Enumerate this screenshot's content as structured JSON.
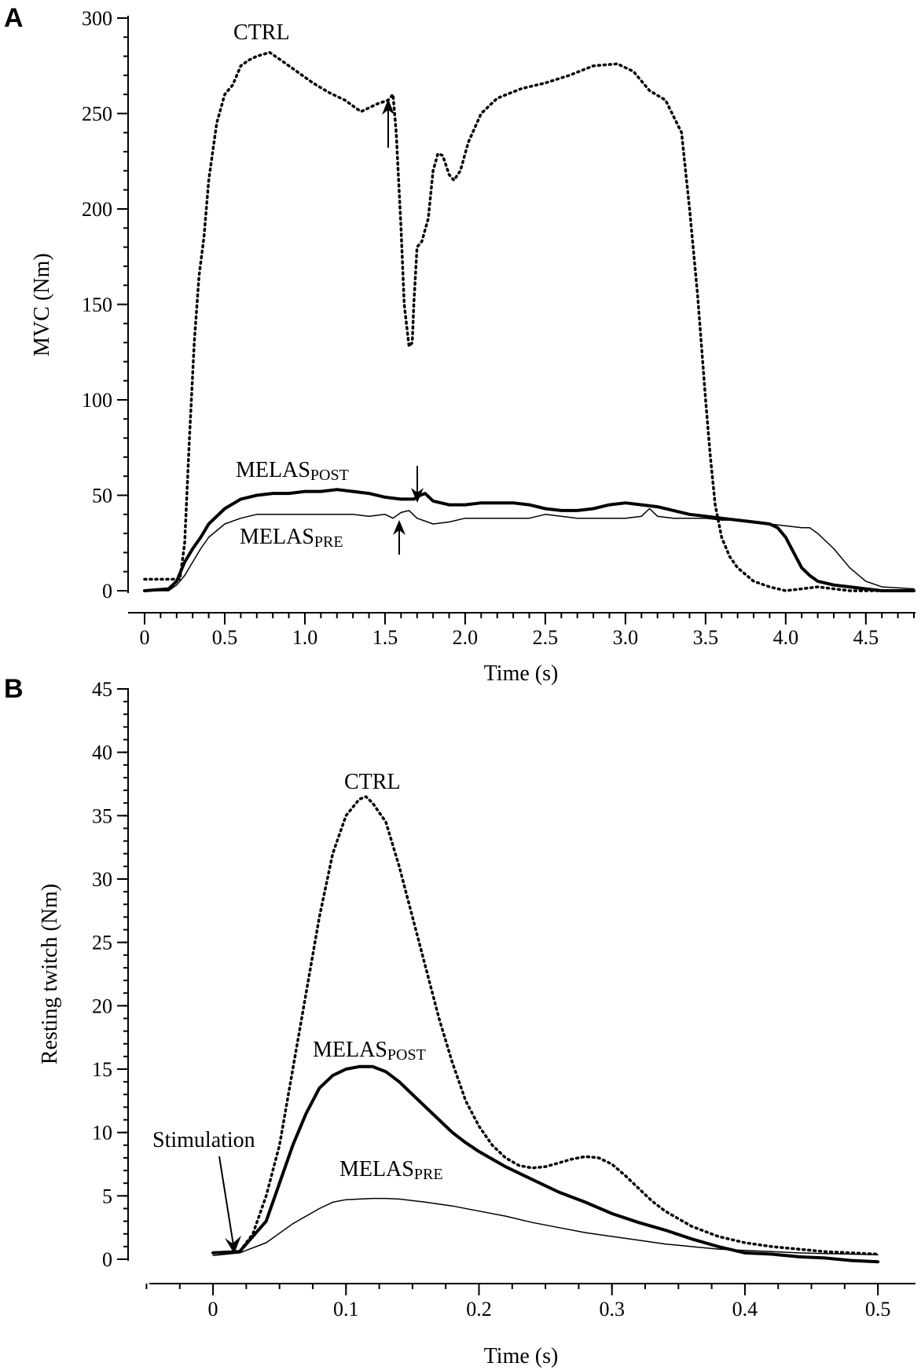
{
  "chart_data": [
    {
      "panel": "A",
      "type": "line",
      "xlabel": "Time (s)",
      "ylabel": "MVC (Nm)",
      "xlim": [
        0,
        4.8
      ],
      "ylim": [
        0,
        300
      ],
      "xticks": [
        "0",
        "0.5",
        "1.0",
        "1.5",
        "2.0",
        "2.5",
        "3.0",
        "3.5",
        "4.0",
        "4.5"
      ],
      "xtick_values": [
        0,
        0.5,
        1.0,
        1.5,
        2.0,
        2.5,
        3.0,
        3.5,
        4.0,
        4.5
      ],
      "yticks": [
        "0",
        "50",
        "100",
        "150",
        "200",
        "250",
        "300"
      ],
      "ytick_values": [
        0,
        50,
        100,
        150,
        200,
        250,
        300
      ],
      "series": [
        {
          "name": "CTRL",
          "style": "dotted",
          "x": [
            0,
            0.22,
            0.25,
            0.28,
            0.31,
            0.34,
            0.37,
            0.4,
            0.45,
            0.5,
            0.55,
            0.6,
            0.65,
            0.7,
            0.78,
            0.85,
            0.95,
            1.05,
            1.15,
            1.25,
            1.35,
            1.45,
            1.52,
            1.55,
            1.57,
            1.6,
            1.62,
            1.65,
            1.67,
            1.68,
            1.7,
            1.73,
            1.77,
            1.8,
            1.83,
            1.86,
            1.9,
            1.93,
            1.97,
            2.02,
            2.1,
            2.2,
            2.35,
            2.5,
            2.65,
            2.8,
            2.95,
            3.05,
            3.15,
            3.25,
            3.35,
            3.4,
            3.45,
            3.5,
            3.53,
            3.56,
            3.6,
            3.65,
            3.7,
            3.8,
            3.9,
            4.0,
            4.1,
            4.2,
            4.3,
            4.4,
            4.5,
            4.6,
            4.8
          ],
          "y": [
            6,
            6,
            25,
            80,
            130,
            165,
            185,
            215,
            245,
            260,
            265,
            275,
            278,
            280,
            282,
            278,
            272,
            266,
            261,
            257,
            251,
            255,
            257,
            260,
            240,
            190,
            150,
            128,
            130,
            150,
            180,
            183,
            195,
            220,
            229,
            228,
            218,
            215,
            220,
            235,
            250,
            258,
            263,
            266,
            270,
            275,
            276,
            272,
            262,
            257,
            240,
            200,
            155,
            100,
            70,
            45,
            28,
            18,
            12,
            5,
            2,
            0,
            1,
            2,
            1,
            0,
            0,
            0,
            0
          ]
        },
        {
          "name": "MELAS_POST",
          "style": "thick",
          "x": [
            0,
            0.15,
            0.2,
            0.25,
            0.3,
            0.35,
            0.4,
            0.5,
            0.6,
            0.7,
            0.8,
            0.9,
            1.0,
            1.1,
            1.2,
            1.3,
            1.4,
            1.5,
            1.6,
            1.68,
            1.72,
            1.75,
            1.8,
            1.9,
            2.0,
            2.1,
            2.2,
            2.3,
            2.4,
            2.5,
            2.6,
            2.7,
            2.8,
            2.9,
            3.0,
            3.1,
            3.2,
            3.3,
            3.4,
            3.5,
            3.6,
            3.7,
            3.8,
            3.9,
            3.95,
            4.0,
            4.05,
            4.1,
            4.15,
            4.2,
            4.3,
            4.4,
            4.5,
            4.6,
            4.8
          ],
          "y": [
            0,
            1,
            5,
            15,
            22,
            28,
            35,
            43,
            48,
            50,
            51,
            51,
            52,
            52,
            53,
            52,
            51,
            49,
            48,
            48,
            50,
            51,
            47,
            45,
            45,
            46,
            46,
            46,
            45,
            43,
            42,
            42,
            43,
            45,
            46,
            45,
            44,
            42,
            40,
            39,
            38,
            37,
            36,
            35,
            33,
            28,
            20,
            12,
            8,
            5,
            3,
            2,
            1,
            0,
            0
          ]
        },
        {
          "name": "MELAS_PRE",
          "style": "thin",
          "x": [
            0,
            0.15,
            0.2,
            0.25,
            0.3,
            0.35,
            0.4,
            0.5,
            0.6,
            0.7,
            0.8,
            0.9,
            1.0,
            1.1,
            1.2,
            1.3,
            1.4,
            1.5,
            1.55,
            1.6,
            1.65,
            1.7,
            1.8,
            1.9,
            2.0,
            2.1,
            2.2,
            2.3,
            2.4,
            2.5,
            2.6,
            2.7,
            2.8,
            2.9,
            3.0,
            3.1,
            3.15,
            3.2,
            3.3,
            3.4,
            3.5,
            3.6,
            3.7,
            3.8,
            3.9,
            4.0,
            4.1,
            4.15,
            4.2,
            4.3,
            4.4,
            4.5,
            4.6,
            4.8
          ],
          "y": [
            0,
            0,
            3,
            8,
            15,
            22,
            28,
            35,
            38,
            40,
            40,
            40,
            40,
            40,
            40,
            40,
            39,
            40,
            38,
            41,
            42,
            38,
            35,
            36,
            38,
            38,
            38,
            38,
            38,
            40,
            39,
            38,
            38,
            38,
            38,
            39,
            43,
            39,
            38,
            38,
            38,
            37,
            37,
            36,
            35,
            34,
            33,
            33,
            30,
            22,
            12,
            5,
            2,
            1
          ]
        }
      ],
      "annotations": {
        "ctrl_label": "CTRL",
        "post_label_main": "MELAS",
        "post_label_sub": "POST",
        "pre_label_main": "MELAS",
        "pre_label_sub": "PRE"
      }
    },
    {
      "panel": "B",
      "type": "line",
      "xlabel": "Time (s)",
      "ylabel": "Resting twitch (Nm)",
      "xlim": [
        -0.07,
        0.52
      ],
      "ylim": [
        0,
        45
      ],
      "xticks": [
        "0",
        "0.1",
        "0.2",
        "0.3",
        "0.4",
        "0.5"
      ],
      "xtick_values": [
        0,
        0.1,
        0.2,
        0.3,
        0.4,
        0.5
      ],
      "yticks": [
        "0",
        "5",
        "10",
        "15",
        "20",
        "25",
        "30",
        "35",
        "40",
        "45"
      ],
      "ytick_values": [
        0,
        5,
        10,
        15,
        20,
        25,
        30,
        35,
        40,
        45
      ],
      "series": [
        {
          "name": "CTRL",
          "style": "dotted",
          "x": [
            0,
            0.02,
            0.03,
            0.04,
            0.05,
            0.06,
            0.07,
            0.08,
            0.09,
            0.1,
            0.11,
            0.115,
            0.12,
            0.13,
            0.14,
            0.15,
            0.16,
            0.17,
            0.18,
            0.19,
            0.2,
            0.21,
            0.22,
            0.23,
            0.24,
            0.25,
            0.26,
            0.27,
            0.28,
            0.29,
            0.3,
            0.31,
            0.32,
            0.33,
            0.34,
            0.35,
            0.36,
            0.38,
            0.4,
            0.42,
            0.44,
            0.46,
            0.48,
            0.5
          ],
          "y": [
            0.5,
            0.6,
            2,
            5,
            9,
            15,
            21,
            27,
            32,
            35,
            36.3,
            36.5,
            36,
            34.5,
            31,
            27,
            23,
            19,
            15.5,
            12.5,
            10.5,
            9,
            8,
            7.4,
            7.2,
            7.3,
            7.6,
            7.9,
            8.1,
            8,
            7.5,
            6.6,
            5.6,
            4.6,
            3.8,
            3.2,
            2.6,
            1.8,
            1.3,
            1.0,
            0.8,
            0.6,
            0.5,
            0.4
          ]
        },
        {
          "name": "MELAS_POST",
          "style": "thick",
          "x": [
            0,
            0.02,
            0.04,
            0.05,
            0.06,
            0.07,
            0.08,
            0.09,
            0.1,
            0.11,
            0.12,
            0.13,
            0.14,
            0.15,
            0.16,
            0.17,
            0.18,
            0.19,
            0.2,
            0.22,
            0.24,
            0.26,
            0.28,
            0.3,
            0.32,
            0.34,
            0.36,
            0.38,
            0.4,
            0.42,
            0.44,
            0.46,
            0.48,
            0.5
          ],
          "y": [
            0.5,
            0.6,
            3,
            6,
            9,
            11.5,
            13.5,
            14.5,
            15,
            15.2,
            15.2,
            14.8,
            14,
            13,
            12,
            11,
            10,
            9.2,
            8.5,
            7.3,
            6.3,
            5.3,
            4.5,
            3.6,
            2.9,
            2.3,
            1.6,
            1.0,
            0.5,
            0.4,
            0.2,
            0.1,
            -0.1,
            -0.2
          ]
        },
        {
          "name": "MELAS_PRE",
          "style": "thin",
          "x": [
            0,
            0.02,
            0.04,
            0.06,
            0.08,
            0.09,
            0.1,
            0.11,
            0.12,
            0.13,
            0.14,
            0.16,
            0.18,
            0.2,
            0.22,
            0.24,
            0.26,
            0.28,
            0.3,
            0.32,
            0.34,
            0.36,
            0.38,
            0.4,
            0.42,
            0.44,
            0.46,
            0.48,
            0.5
          ],
          "y": [
            0.3,
            0.5,
            1.3,
            2.8,
            4.0,
            4.5,
            4.7,
            4.75,
            4.8,
            4.8,
            4.75,
            4.5,
            4.2,
            3.8,
            3.4,
            2.9,
            2.5,
            2.1,
            1.8,
            1.5,
            1.2,
            1.0,
            0.8,
            0.7,
            0.6,
            0.5,
            0.45,
            0.4,
            0.35
          ]
        }
      ],
      "annotations": {
        "ctrl_label": "CTRL",
        "post_label_main": "MELAS",
        "post_label_sub": "POST",
        "pre_label_main": "MELAS",
        "pre_label_sub": "PRE",
        "stimulation_label": "Stimulation"
      }
    }
  ]
}
